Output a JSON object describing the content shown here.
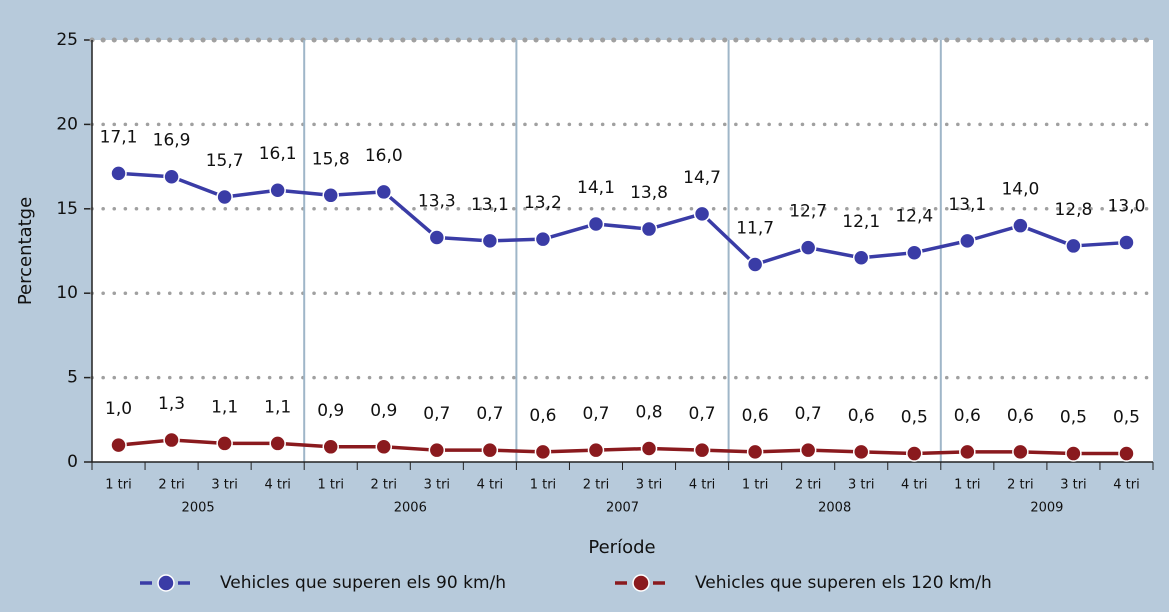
{
  "chart_data": {
    "type": "line",
    "x_label": "Període",
    "y_label": "Percentatge",
    "categories": [
      "1 tri",
      "2 tri",
      "3 tri",
      "4 tri",
      "1 tri",
      "2 tri",
      "3 tri",
      "4 tri",
      "1 tri",
      "2 tri",
      "3 tri",
      "4 tri",
      "1 tri",
      "2 tri",
      "3 tri",
      "4 tri",
      "1 tri",
      "2 tri",
      "3 tri",
      "4 tri"
    ],
    "years": [
      "2005",
      "2006",
      "2007",
      "2008",
      "2009"
    ],
    "series": [
      {
        "name": "Vehicles que superen els 90 km/h",
        "color": "#3a3ca6",
        "values": [
          17.1,
          16.9,
          15.7,
          16.1,
          15.8,
          16.0,
          13.3,
          13.1,
          13.2,
          14.1,
          13.8,
          14.7,
          11.7,
          12.7,
          12.1,
          12.4,
          13.1,
          14.0,
          12.8,
          13.0
        ],
        "value_labels": [
          "17,1",
          "16,9",
          "15,7",
          "16,1",
          "15,8",
          "16,0",
          "13,3",
          "13,1",
          "13,2",
          "14,1",
          "13,8",
          "14,7",
          "11,7",
          "12,7",
          "12,1",
          "12,4",
          "13,1",
          "14,0",
          "12,8",
          "13,0"
        ]
      },
      {
        "name": "Vehicles que superen els 120 km/h",
        "color": "#8a1a1e",
        "values": [
          1.0,
          1.3,
          1.1,
          1.1,
          0.9,
          0.9,
          0.7,
          0.7,
          0.6,
          0.7,
          0.8,
          0.7,
          0.6,
          0.7,
          0.6,
          0.5,
          0.6,
          0.6,
          0.5,
          0.5
        ],
        "value_labels": [
          "1,0",
          "1,3",
          "1,1",
          "1,1",
          "0,9",
          "0,9",
          "0,7",
          "0,7",
          "0,6",
          "0,7",
          "0,8",
          "0,7",
          "0,6",
          "0,7",
          "0,6",
          "0,5",
          "0,6",
          "0,6",
          "0,5",
          "0,5"
        ]
      }
    ],
    "ylim": [
      0,
      25
    ],
    "yticks": [
      0,
      5,
      10,
      15,
      20,
      25
    ],
    "grid": true
  }
}
